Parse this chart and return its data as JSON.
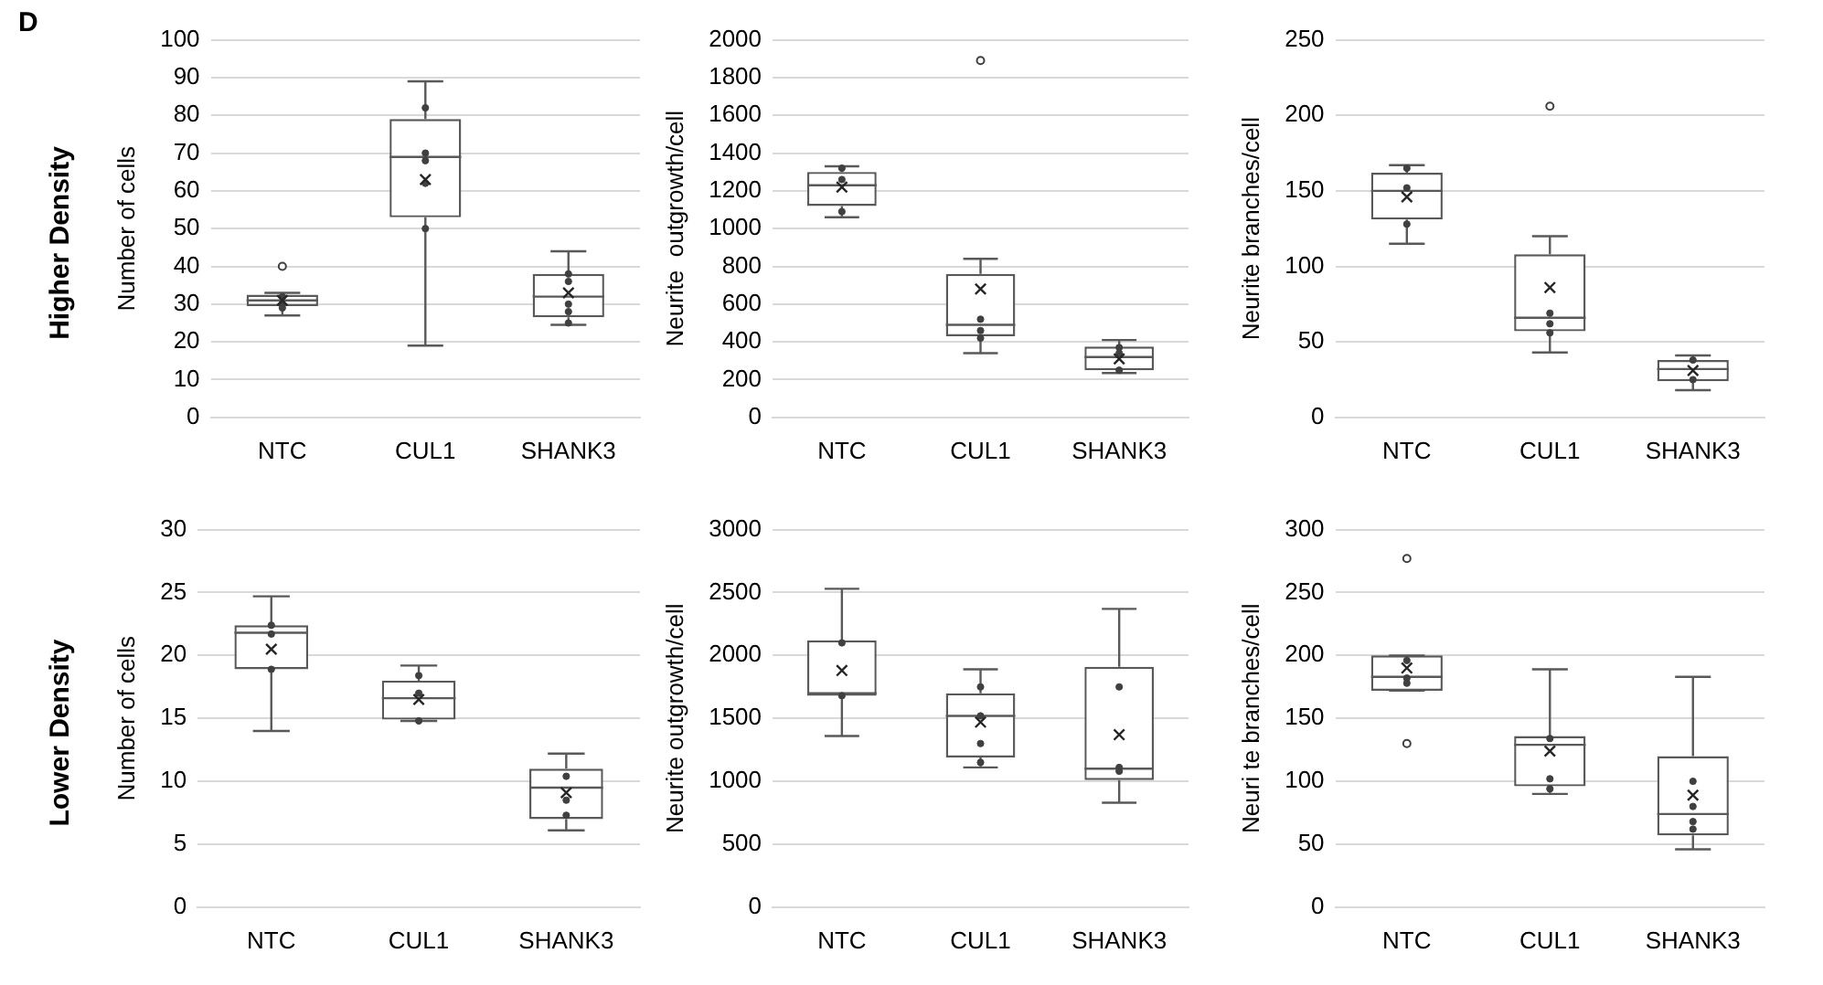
{
  "chart_data": [
    {
      "type": "box",
      "ylabel": "Number of cells",
      "annotations": [
        "D",
        "Higher Density"
      ],
      "categories": [
        "NTC",
        "CUL1",
        "SHANK3"
      ],
      "color": "#595959",
      "ylim": [
        0,
        100
      ],
      "yticks": [
        0,
        10,
        20,
        30,
        40,
        50,
        60,
        70,
        80,
        90,
        100
      ],
      "grid": "y",
      "legend": false,
      "marker": "circle",
      "boxes": [
        {
          "low": 27,
          "q1": 29.5,
          "median": 31,
          "q3": 32.5,
          "high": 33,
          "mean": 31,
          "outliers": [
            40
          ]
        },
        {
          "low": 19,
          "q1": 53,
          "median": 69,
          "q3": 79,
          "high": 89,
          "mean": 63
        },
        {
          "low": 24.5,
          "q1": 26.5,
          "median": 32,
          "q3": 38,
          "high": 44,
          "mean": 33
        }
      ],
      "series": [
        {
          "type": "scatter",
          "color": "#404040",
          "x": [
            "NTC",
            "NTC",
            "NTC",
            "CUL1",
            "CUL1",
            "CUL1",
            "CUL1",
            "CUL1",
            "SHANK3",
            "SHANK3",
            "SHANK3",
            "SHANK3",
            "SHANK3"
          ],
          "values": [
            29,
            30,
            32,
            82,
            70,
            68,
            62,
            50,
            38,
            36,
            30,
            28,
            25
          ]
        }
      ]
    },
    {
      "type": "box",
      "ylabel": "Neurite  outgrowth/cell",
      "categories": [
        "NTC",
        "CUL1",
        "SHANK3"
      ],
      "color": "#595959",
      "ylim": [
        0,
        2000
      ],
      "yticks": [
        0,
        200,
        400,
        600,
        800,
        1000,
        1200,
        1400,
        1600,
        1800,
        2000
      ],
      "grid": "y",
      "legend": false,
      "marker": "circle",
      "boxes": [
        {
          "low": 1060,
          "q1": 1120,
          "median": 1230,
          "q3": 1300,
          "high": 1330,
          "mean": 1220
        },
        {
          "low": 340,
          "q1": 430,
          "median": 490,
          "q3": 760,
          "high": 840,
          "mean": 680,
          "outliers": [
            1890
          ]
        },
        {
          "low": 235,
          "q1": 250,
          "median": 320,
          "q3": 375,
          "high": 410,
          "mean": 310
        }
      ],
      "series": [
        {
          "type": "scatter",
          "color": "#404040",
          "x": [
            "NTC",
            "NTC",
            "NTC",
            "CUL1",
            "CUL1",
            "CUL1",
            "SHANK3",
            "SHANK3",
            "SHANK3"
          ],
          "values": [
            1320,
            1260,
            1090,
            520,
            460,
            420,
            370,
            340,
            250
          ]
        }
      ]
    },
    {
      "type": "box",
      "ylabel": "Neurite branches/cell",
      "categories": [
        "NTC",
        "CUL1",
        "SHANK3"
      ],
      "color": "#595959",
      "ylim": [
        0,
        250
      ],
      "yticks": [
        0,
        50,
        100,
        150,
        200,
        250
      ],
      "grid": "y",
      "legend": false,
      "marker": "circle",
      "boxes": [
        {
          "low": 115,
          "q1": 131,
          "median": 150,
          "q3": 162,
          "high": 167,
          "mean": 146
        },
        {
          "low": 43,
          "q1": 57,
          "median": 66,
          "q3": 108,
          "high": 120,
          "mean": 86,
          "outliers": [
            206
          ]
        },
        {
          "low": 18,
          "q1": 24,
          "median": 32,
          "q3": 38,
          "high": 41,
          "mean": 31
        }
      ],
      "series": [
        {
          "type": "scatter",
          "color": "#404040",
          "x": [
            "NTC",
            "NTC",
            "NTC",
            "CUL1",
            "CUL1",
            "CUL1",
            "SHANK3",
            "SHANK3"
          ],
          "values": [
            165,
            152,
            128,
            69,
            62,
            56,
            38,
            25
          ]
        }
      ]
    },
    {
      "type": "box",
      "ylabel": "Number of cells",
      "annotations": [
        "Lower Density"
      ],
      "categories": [
        "NTC",
        "CUL1",
        "SHANK3"
      ],
      "color": "#595959",
      "ylim": [
        0,
        30
      ],
      "yticks": [
        0,
        5,
        10,
        15,
        20,
        25,
        30
      ],
      "grid": "y",
      "legend": false,
      "marker": "circle",
      "boxes": [
        {
          "low": 14,
          "q1": 18.9,
          "median": 21.8,
          "q3": 22.4,
          "high": 24.7,
          "mean": 20.5
        },
        {
          "low": 14.8,
          "q1": 14.9,
          "median": 16.6,
          "q3": 18,
          "high": 19.2,
          "mean": 16.5
        },
        {
          "low": 6.1,
          "q1": 7,
          "median": 9.5,
          "q3": 11,
          "high": 12.2,
          "mean": 9.1
        }
      ],
      "series": [
        {
          "type": "scatter",
          "color": "#404040",
          "x": [
            "NTC",
            "NTC",
            "NTC",
            "CUL1",
            "CUL1",
            "CUL1",
            "SHANK3",
            "SHANK3",
            "SHANK3"
          ],
          "values": [
            22.4,
            21.7,
            18.9,
            18.4,
            17,
            14.8,
            10.4,
            8.5,
            7.3
          ]
        }
      ]
    },
    {
      "type": "box",
      "ylabel": "Neurite outgrowth/cell",
      "categories": [
        "NTC",
        "CUL1",
        "SHANK3"
      ],
      "color": "#595959",
      "ylim": [
        0,
        3000
      ],
      "yticks": [
        0,
        500,
        1000,
        1500,
        2000,
        2500,
        3000
      ],
      "grid": "y",
      "legend": false,
      "marker": "circle",
      "boxes": [
        {
          "low": 1360,
          "q1": 1680,
          "median": 1700,
          "q3": 2120,
          "high": 2530,
          "mean": 1880
        },
        {
          "low": 1110,
          "q1": 1190,
          "median": 1520,
          "q3": 1700,
          "high": 1890,
          "mean": 1470
        },
        {
          "low": 830,
          "q1": 1010,
          "median": 1100,
          "q3": 1910,
          "high": 2370,
          "mean": 1370
        }
      ],
      "series": [
        {
          "type": "scatter",
          "color": "#404040",
          "x": [
            "NTC",
            "NTC",
            "CUL1",
            "CUL1",
            "CUL1",
            "CUL1",
            "SHANK3",
            "SHANK3",
            "SHANK3"
          ],
          "values": [
            2100,
            1680,
            1750,
            1520,
            1300,
            1150,
            1750,
            1110,
            1080
          ]
        }
      ]
    },
    {
      "type": "box",
      "ylabel": "Neuri te branches/cell",
      "categories": [
        "NTC",
        "CUL1",
        "SHANK3"
      ],
      "color": "#595959",
      "ylim": [
        0,
        300
      ],
      "yticks": [
        0,
        50,
        100,
        150,
        200,
        250,
        300
      ],
      "grid": "y",
      "legend": false,
      "marker": "circle",
      "boxes": [
        {
          "low": 172,
          "q1": 172,
          "median": 183,
          "q3": 200,
          "high": 200,
          "mean": 190,
          "outliers": [
            277,
            130
          ]
        },
        {
          "low": 90,
          "q1": 96,
          "median": 129,
          "q3": 136,
          "high": 189,
          "mean": 124
        },
        {
          "low": 46,
          "q1": 57,
          "median": 74,
          "q3": 120,
          "high": 183,
          "mean": 89
        }
      ],
      "series": [
        {
          "type": "scatter",
          "color": "#404040",
          "x": [
            "NTC",
            "NTC",
            "NTC",
            "CUL1",
            "CUL1",
            "CUL1",
            "SHANK3",
            "SHANK3",
            "SHANK3",
            "SHANK3"
          ],
          "values": [
            196,
            182,
            178,
            134,
            102,
            94,
            100,
            80,
            68,
            62
          ]
        }
      ]
    }
  ]
}
